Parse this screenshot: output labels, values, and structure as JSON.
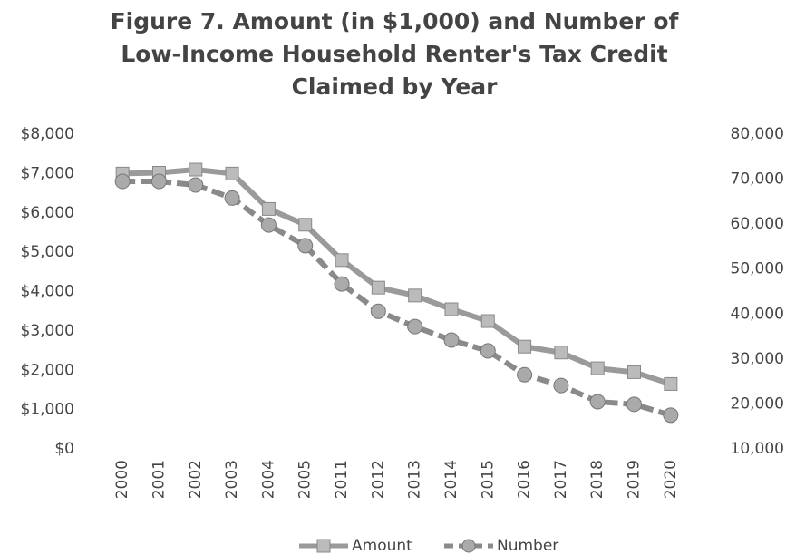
{
  "chart_data": {
    "type": "line",
    "title": "Figure 7. Amount (in $1,000) and Number of Low-Income Household Renter's Tax Credit Claimed by Year",
    "categories": [
      "2000",
      "2001",
      "2002",
      "2003",
      "2004",
      "2005",
      "2011",
      "2012",
      "2013",
      "2014",
      "2015",
      "2016",
      "2017",
      "2018",
      "2019",
      "2020"
    ],
    "series": [
      {
        "name": "Amount",
        "color": "#9a9a9a",
        "values": [
          7000,
          7020,
          7100,
          7000,
          6100,
          5700,
          4800,
          4100,
          3900,
          3550,
          3250,
          2600,
          2450,
          2050,
          1950,
          1650
        ]
      },
      {
        "name": "Number",
        "color": "#8a8a8a",
        "axis": "y2",
        "values": [
          69500,
          69500,
          68700,
          65800,
          59800,
          55200,
          46700,
          40600,
          37200,
          34200,
          31800,
          26500,
          24100,
          20500,
          19900,
          17500
        ]
      }
    ],
    "ylim": [
      0,
      8000
    ],
    "yticks": [
      {
        "value": 0,
        "label": "$0"
      },
      {
        "value": 1000,
        "label": "$1,000"
      },
      {
        "value": 2000,
        "label": "$2,000"
      },
      {
        "value": 3000,
        "label": "$3,000"
      },
      {
        "value": 4000,
        "label": "$4,000"
      },
      {
        "value": 5000,
        "label": "$5,000"
      },
      {
        "value": 6000,
        "label": "$6,000"
      },
      {
        "value": 7000,
        "label": "$7,000"
      },
      {
        "value": 8000,
        "label": "$8,000"
      }
    ],
    "y2lim": [
      10000,
      80000
    ],
    "y2ticks": [
      {
        "value": 10000,
        "label": "10,000"
      },
      {
        "value": 20000,
        "label": "20,000"
      },
      {
        "value": 30000,
        "label": "30,000"
      },
      {
        "value": 40000,
        "label": "40,000"
      },
      {
        "value": 50000,
        "label": "50,000"
      },
      {
        "value": 60000,
        "label": "60,000"
      },
      {
        "value": 70000,
        "label": "70,000"
      },
      {
        "value": 80000,
        "label": "80,000"
      }
    ],
    "legend": "bottom",
    "grid": false
  }
}
